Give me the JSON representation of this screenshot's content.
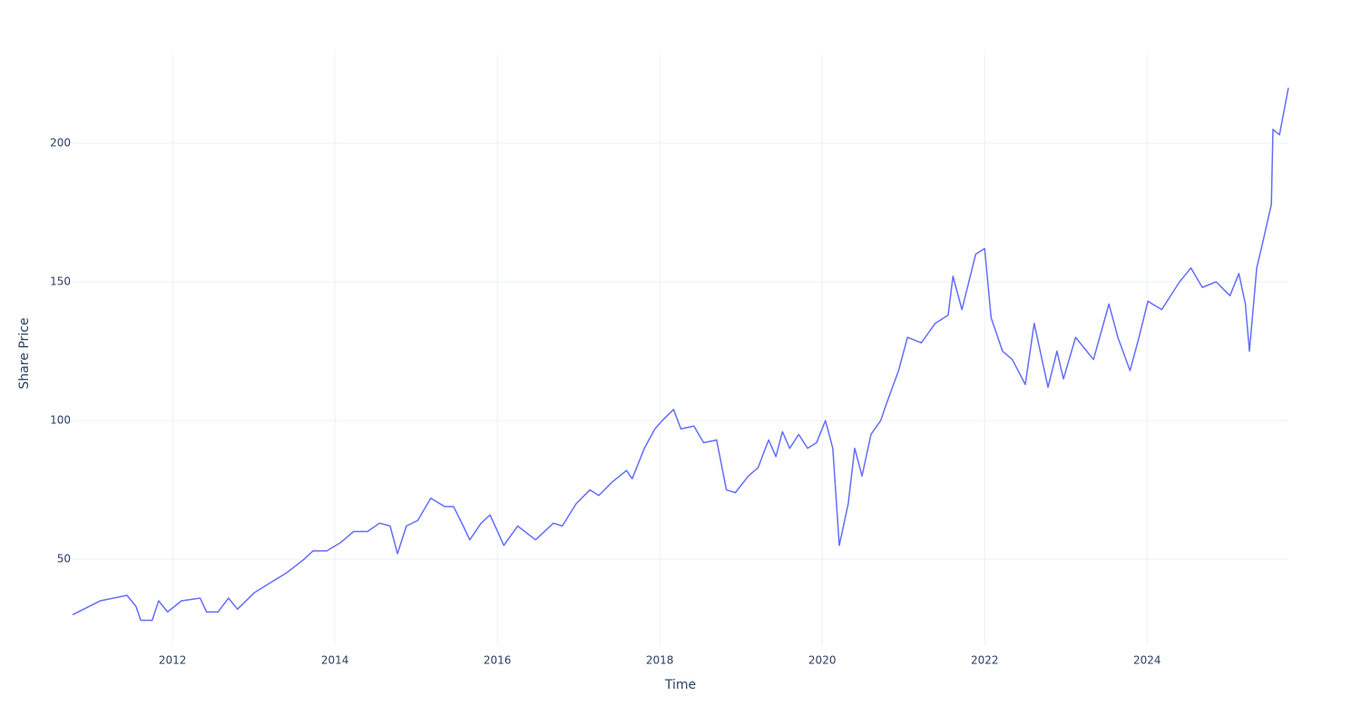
{
  "chart_data": {
    "type": "line",
    "xlabel": "Time",
    "ylabel": "Share Price",
    "x": [
      2010.77,
      2011.11,
      2011.44,
      2011.55,
      2011.61,
      2011.75,
      2011.83,
      2011.94,
      2012.11,
      2012.34,
      2012.42,
      2012.56,
      2012.69,
      2012.8,
      2013.01,
      2013.23,
      2013.4,
      2013.62,
      2013.73,
      2013.9,
      2014.07,
      2014.23,
      2014.4,
      2014.55,
      2014.68,
      2014.77,
      2014.88,
      2015.02,
      2015.18,
      2015.35,
      2015.46,
      2015.58,
      2015.66,
      2015.8,
      2015.91,
      2016.08,
      2016.25,
      2016.47,
      2016.69,
      2016.8,
      2016.97,
      2017.14,
      2017.25,
      2017.42,
      2017.59,
      2017.66,
      2017.81,
      2017.94,
      2018.03,
      2018.17,
      2018.26,
      2018.42,
      2018.54,
      2018.7,
      2018.82,
      2018.93,
      2019.09,
      2019.21,
      2019.34,
      2019.43,
      2019.51,
      2019.6,
      2019.71,
      2019.82,
      2019.93,
      2020.04,
      2020.13,
      2020.21,
      2020.32,
      2020.4,
      2020.49,
      2020.6,
      2020.72,
      2020.79,
      2020.94,
      2021.05,
      2021.22,
      2021.39,
      2021.55,
      2021.61,
      2021.72,
      2021.89,
      2022.0,
      2022.08,
      2022.22,
      2022.34,
      2022.5,
      2022.61,
      2022.78,
      2022.89,
      2022.97,
      2023.12,
      2023.23,
      2023.34,
      2023.53,
      2023.64,
      2023.79,
      2023.9,
      2024.01,
      2024.18,
      2024.4,
      2024.54,
      2024.68,
      2024.85,
      2025.02,
      2025.13,
      2025.21,
      2025.26,
      2025.35,
      2025.43,
      2025.53,
      2025.55,
      2025.63,
      2025.74
    ],
    "series": [
      {
        "color": "#636efa",
        "values": [
          30,
          35,
          37,
          33,
          28,
          28,
          35,
          31,
          35,
          36,
          31,
          31,
          36,
          32,
          38,
          42,
          45,
          50,
          53,
          53,
          56,
          60,
          60,
          63,
          62,
          52,
          62,
          64,
          72,
          69,
          69,
          62,
          57,
          63,
          66,
          55,
          62,
          57,
          63,
          62,
          70,
          75,
          73,
          78,
          82,
          79,
          90,
          97,
          100,
          104,
          97,
          98,
          92,
          93,
          75,
          74,
          80,
          83,
          93,
          87,
          96,
          90,
          95,
          90,
          92,
          100,
          90,
          55,
          70,
          90,
          80,
          95,
          100,
          106,
          118,
          130,
          128,
          135,
          138,
          152,
          140,
          160,
          162,
          137,
          125,
          122,
          113,
          135,
          112,
          125,
          115,
          130,
          126,
          122,
          142,
          130,
          118,
          130,
          143,
          140,
          150,
          155,
          148,
          150,
          145,
          153,
          142,
          125,
          155,
          165,
          178,
          205,
          203,
          220
        ]
      }
    ],
    "xlim": [
      2010.77,
      2025.74
    ],
    "xticks": [
      2012,
      2014,
      2016,
      2018,
      2020,
      2022,
      2024
    ],
    "ylim": [
      19,
      232
    ],
    "yticks": [
      50,
      100,
      150,
      200
    ],
    "grid": true
  }
}
